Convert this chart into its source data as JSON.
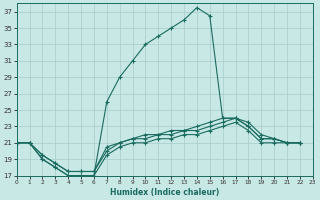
{
  "xlabel": "Humidex (Indice chaleur)",
  "bg_color": "#c8e8e5",
  "grid_color": "#a8ccca",
  "line_color": "#1a6b60",
  "xlim": [
    0,
    23
  ],
  "ylim": [
    17,
    38
  ],
  "xticks": [
    0,
    1,
    2,
    3,
    4,
    5,
    6,
    7,
    8,
    9,
    10,
    11,
    12,
    13,
    14,
    15,
    16,
    17,
    18,
    19,
    20,
    21,
    22,
    23
  ],
  "yticks": [
    17,
    19,
    21,
    23,
    25,
    27,
    29,
    31,
    33,
    35,
    37
  ],
  "series1_x": [
    0,
    1,
    2,
    3,
    4,
    5,
    6,
    7,
    8,
    9,
    10,
    11,
    12,
    13,
    14,
    15,
    16,
    17,
    18,
    19,
    20,
    21,
    22
  ],
  "series1_y": [
    21,
    21,
    19,
    18,
    17,
    17,
    17,
    26,
    29,
    31,
    33,
    34,
    35,
    36,
    37.5,
    36.5,
    24,
    24,
    23,
    21.5,
    21.5,
    21,
    21
  ],
  "series2_x": [
    0,
    1,
    2,
    3,
    4,
    5,
    6,
    7,
    8,
    9,
    10,
    11,
    12,
    13,
    14,
    15,
    16,
    17,
    18,
    19,
    20,
    21,
    22
  ],
  "series2_y": [
    21,
    21,
    19.5,
    18.5,
    17.5,
    17.5,
    17.5,
    20.5,
    21,
    21.5,
    22,
    22,
    22.5,
    22.5,
    23,
    23.5,
    24,
    24,
    23.5,
    22,
    21.5,
    21,
    21
  ],
  "series3_x": [
    0,
    1,
    2,
    3,
    4,
    5,
    6,
    7,
    8,
    9,
    10,
    11,
    12,
    13,
    14,
    15,
    16,
    17,
    18,
    19,
    20,
    21,
    22
  ],
  "series3_y": [
    21,
    21,
    19.5,
    18.5,
    17.5,
    17.5,
    17.5,
    20,
    21,
    21.5,
    21.5,
    22,
    22,
    22.5,
    22.5,
    23,
    23.5,
    24,
    23,
    21.5,
    21.5,
    21,
    21
  ],
  "series4_x": [
    0,
    1,
    2,
    3,
    4,
    5,
    6,
    7,
    8,
    9,
    10,
    11,
    12,
    13,
    14,
    15,
    16,
    17,
    18,
    19,
    20,
    21,
    22
  ],
  "series4_y": [
    21,
    21,
    19,
    18,
    17,
    17,
    17,
    19.5,
    20.5,
    21,
    21,
    21.5,
    21.5,
    22,
    22,
    22.5,
    23,
    23.5,
    22.5,
    21,
    21,
    21,
    21
  ]
}
